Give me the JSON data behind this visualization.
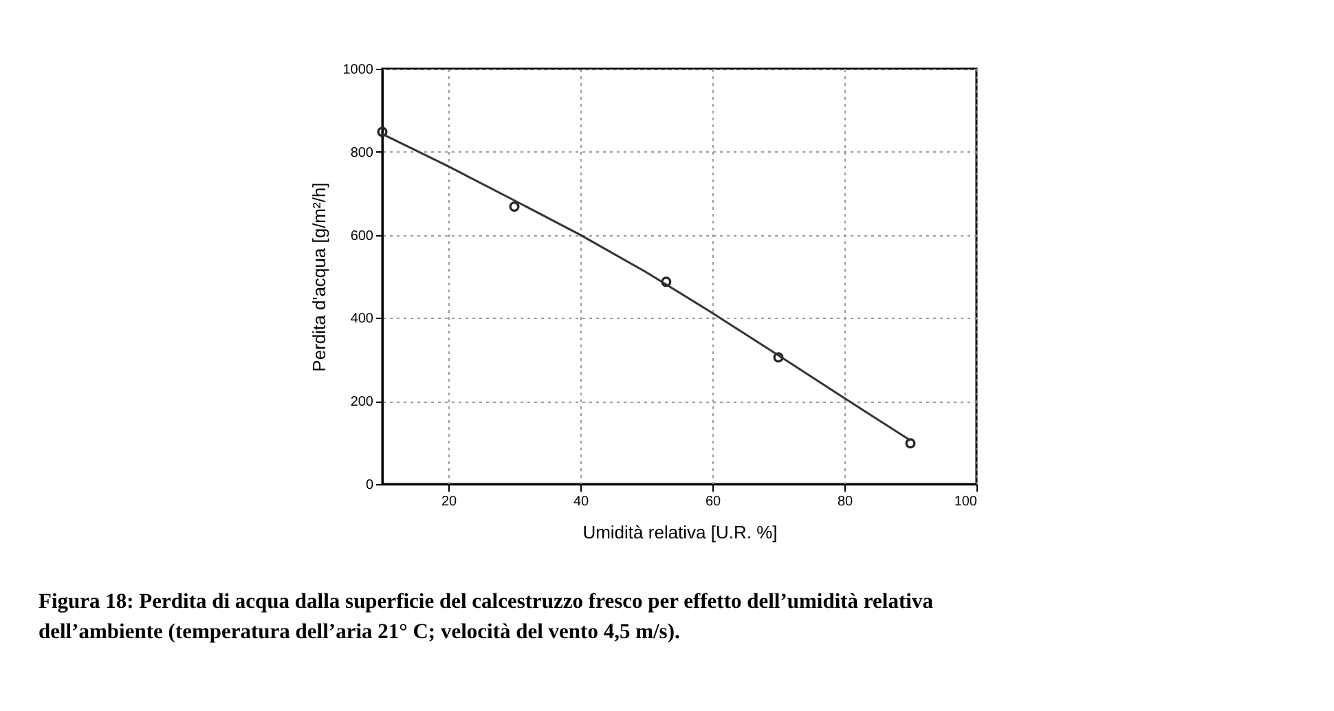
{
  "chart_data": {
    "type": "scatter",
    "xlabel": "Umidità relativa [U.R. %]",
    "ylabel": "Perdita d'acqua [g/m²/h]",
    "series": [
      {
        "color": "#222222",
        "x": [
          10,
          30,
          53,
          70,
          90
        ],
        "values": [
          848,
          668,
          487,
          305,
          98
        ],
        "marker": "circle"
      },
      {
        "type": "line",
        "color": "#333333",
        "x": [
          10,
          20,
          30,
          40,
          50,
          60,
          70,
          80,
          90
        ],
        "values": [
          843,
          765,
          683,
          600,
          510,
          412,
          310,
          207,
          105
        ]
      }
    ],
    "xlim": [
      10,
      100
    ],
    "xticks": [
      20,
      40,
      60,
      80,
      100
    ],
    "ylim": [
      0,
      1000
    ],
    "yticks": [
      0,
      200,
      400,
      600,
      800,
      1000
    ],
    "grid": true,
    "annotations": [
      "Figura 18: Perdita di acqua dalla superficie del calcestruzzo fresco per effetto dell’umidità relativa dell’ambiente (temperatura dell’aria 21° C; velocità del vento 4,5 m/s)."
    ]
  }
}
